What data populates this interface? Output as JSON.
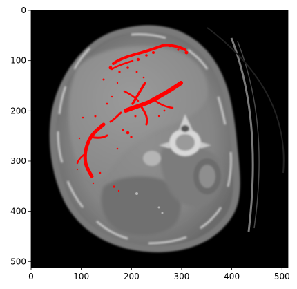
{
  "image": {
    "description_kind": "axial CT slice with red overlay",
    "image_size": [
      512,
      512
    ],
    "overlay_color": "#ff0000",
    "background_color": "#000000"
  },
  "axes": {
    "x_ticks": [
      "0",
      "100",
      "200",
      "300",
      "400",
      "500"
    ],
    "y_ticks": [
      "0",
      "100",
      "200",
      "300",
      "400",
      "500"
    ],
    "x_tick_values": [
      0,
      100,
      200,
      300,
      400,
      500
    ],
    "y_tick_values": [
      0,
      100,
      200,
      300,
      400,
      500
    ],
    "x_range": [
      0,
      512
    ],
    "y_range": [
      0,
      512
    ]
  }
}
